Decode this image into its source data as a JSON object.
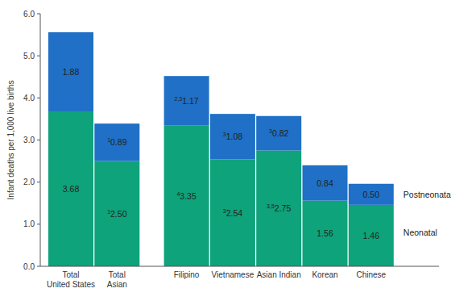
{
  "chart_data": {
    "type": "bar",
    "stacked": true,
    "data_labels": true,
    "legend": "right",
    "y_label": "Infant deaths per 1,000 live births",
    "categories": [
      "Total\nUnited States",
      "Total\nAsian",
      "Filipino",
      "Vietnamese",
      "Asian Indian",
      "Korean",
      "Chinese"
    ],
    "series": [
      {
        "name": "Neonatal",
        "color": "#0ea37a",
        "values": [
          3.68,
          2.5,
          3.35,
          2.54,
          2.75,
          1.56,
          1.46
        ],
        "value_notes": [
          null,
          "1",
          "4",
          "3",
          "3,5",
          null,
          null
        ]
      },
      {
        "name": "Postneonatal",
        "color": "#1f70c6",
        "values": [
          1.88,
          0.89,
          1.17,
          1.08,
          0.82,
          0.84,
          0.5
        ],
        "value_notes": [
          null,
          "1",
          "2,3",
          "3",
          "3",
          null,
          null
        ]
      }
    ],
    "ylim": [
      0,
      6
    ],
    "yticks": [
      {
        "value": 0,
        "label": "0.0"
      },
      {
        "value": 1,
        "label": "1.0"
      },
      {
        "value": 2,
        "label": "2.0"
      },
      {
        "value": 3,
        "label": "3.0"
      },
      {
        "value": 4,
        "label": "4.0"
      },
      {
        "value": 5,
        "label": "5.0"
      },
      {
        "value": 6,
        "label": "6.0"
      }
    ]
  }
}
